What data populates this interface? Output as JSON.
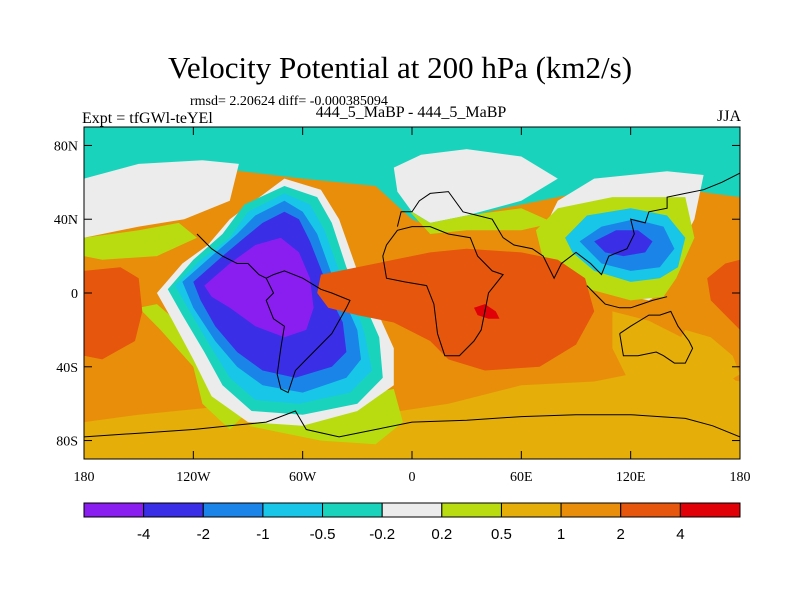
{
  "title": "Velocity Potential at 200 hPa (km2/s)",
  "stats": "rmsd= 2.20624 diff= -0.000385094",
  "left_label": "Expt = tfGWl-teYEl",
  "center_label": "444_5_MaBP - 444_5_MaBP",
  "right_label": "JJA",
  "chart_data": {
    "type": "heatmap",
    "title": "Velocity Potential at 200 hPa (km2/s)",
    "x_range": [
      -180,
      180
    ],
    "y_range": [
      -90,
      90
    ],
    "x_ticks": [
      {
        "value": -180,
        "label": "180"
      },
      {
        "value": -120,
        "label": "120W"
      },
      {
        "value": -60,
        "label": "60W"
      },
      {
        "value": 0,
        "label": "0"
      },
      {
        "value": 60,
        "label": "60E"
      },
      {
        "value": 120,
        "label": "120E"
      },
      {
        "value": 180,
        "label": "180"
      }
    ],
    "y_ticks": [
      {
        "value": 80,
        "label": "80N"
      },
      {
        "value": 40,
        "label": "40N"
      },
      {
        "value": 0,
        "label": "0"
      },
      {
        "value": -40,
        "label": "40S"
      },
      {
        "value": -80,
        "label": "80S"
      }
    ],
    "levels": [
      "-4",
      "-2",
      "-1",
      "-0.5",
      "-0.2",
      "0.2",
      "0.5",
      "1",
      "2",
      "4"
    ],
    "colors": [
      "#8a1ef0",
      "#3a2ee6",
      "#1a84e8",
      "#18c6e8",
      "#1ad3bc",
      "#ececec",
      "#b8dc10",
      "#e6ae08",
      "#e88e0a",
      "#e6560c",
      "#e00008"
    ]
  }
}
